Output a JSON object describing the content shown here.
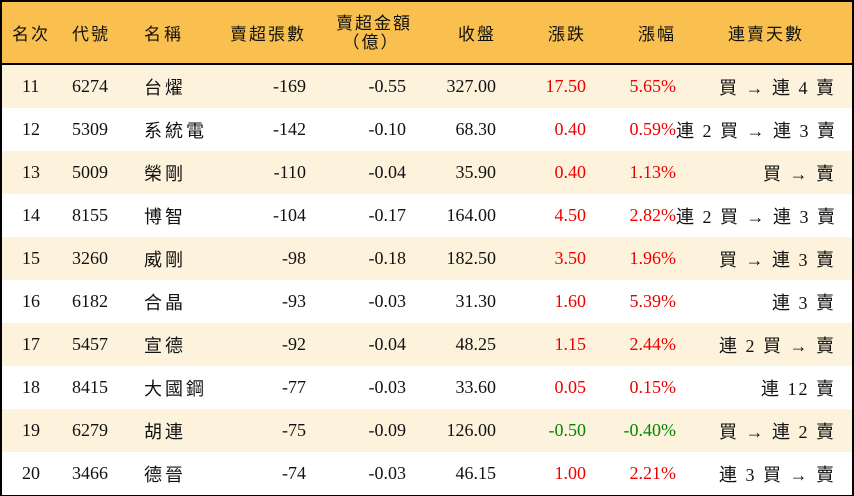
{
  "colors": {
    "header_bg": "#f9c04f",
    "row_odd_bg": "#fdf2dc",
    "row_even_bg": "#ffffff",
    "up": "#ee0000",
    "down": "#008800"
  },
  "header": {
    "rank": "名次",
    "code": "代號",
    "name": "名稱",
    "net_sell_volume": "賣超張數",
    "net_sell_amount_line1": "賣超金額",
    "net_sell_amount_line2": "（億）",
    "close": "收盤",
    "change": "漲跌",
    "change_pct": "漲幅",
    "streak": "連賣天數"
  },
  "rows": [
    {
      "rank": "11",
      "code": "6274",
      "name": "台燿",
      "volume": "-169",
      "amount": "-0.55",
      "close": "327.00",
      "change": "17.50",
      "pct": "5.65%",
      "dir": "up",
      "streak": "買 → 連 4 賣"
    },
    {
      "rank": "12",
      "code": "5309",
      "name": "系統電",
      "volume": "-142",
      "amount": "-0.10",
      "close": "68.30",
      "change": "0.40",
      "pct": "0.59%",
      "dir": "up",
      "streak": "連 2 買 → 連 3 賣"
    },
    {
      "rank": "13",
      "code": "5009",
      "name": "榮剛",
      "volume": "-110",
      "amount": "-0.04",
      "close": "35.90",
      "change": "0.40",
      "pct": "1.13%",
      "dir": "up",
      "streak": "買 → 賣"
    },
    {
      "rank": "14",
      "code": "8155",
      "name": "博智",
      "volume": "-104",
      "amount": "-0.17",
      "close": "164.00",
      "change": "4.50",
      "pct": "2.82%",
      "dir": "up",
      "streak": "連 2 買 → 連 3 賣"
    },
    {
      "rank": "15",
      "code": "3260",
      "name": "威剛",
      "volume": "-98",
      "amount": "-0.18",
      "close": "182.50",
      "change": "3.50",
      "pct": "1.96%",
      "dir": "up",
      "streak": "買 → 連 3 賣"
    },
    {
      "rank": "16",
      "code": "6182",
      "name": "合晶",
      "volume": "-93",
      "amount": "-0.03",
      "close": "31.30",
      "change": "1.60",
      "pct": "5.39%",
      "dir": "up",
      "streak": "連 3 賣"
    },
    {
      "rank": "17",
      "code": "5457",
      "name": "宣德",
      "volume": "-92",
      "amount": "-0.04",
      "close": "48.25",
      "change": "1.15",
      "pct": "2.44%",
      "dir": "up",
      "streak": "連 2 買 → 賣"
    },
    {
      "rank": "18",
      "code": "8415",
      "name": "大國鋼",
      "volume": "-77",
      "amount": "-0.03",
      "close": "33.60",
      "change": "0.05",
      "pct": "0.15%",
      "dir": "up",
      "streak": "連 12 賣"
    },
    {
      "rank": "19",
      "code": "6279",
      "name": "胡連",
      "volume": "-75",
      "amount": "-0.09",
      "close": "126.00",
      "change": "-0.50",
      "pct": "-0.40%",
      "dir": "down",
      "streak": "買 → 連 2 賣"
    },
    {
      "rank": "20",
      "code": "3466",
      "name": "德晉",
      "volume": "-74",
      "amount": "-0.03",
      "close": "46.15",
      "change": "1.00",
      "pct": "2.21%",
      "dir": "up",
      "streak": "連 3 買 → 賣"
    }
  ]
}
